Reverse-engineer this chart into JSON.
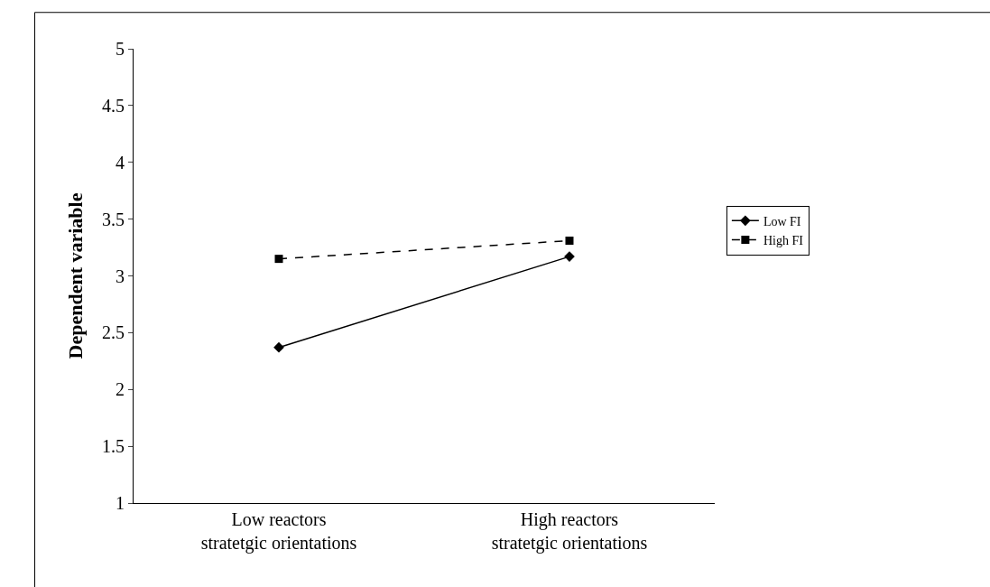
{
  "chart_data": {
    "type": "line",
    "ylabel": "Dependent variable",
    "categories": [
      "Low reactors stratetgic orientations",
      "High reactors stratetgic orientations"
    ],
    "series": [
      {
        "name": "Low FI",
        "color": "#000000",
        "values": [
          2.37,
          3.17
        ],
        "marker": "diamond",
        "line_style": "solid"
      },
      {
        "name": "High FI",
        "color": "#000000",
        "values": [
          3.15,
          3.31
        ],
        "marker": "square",
        "line_style": "dashed"
      }
    ],
    "ylim": [
      1,
      5
    ],
    "yticks": [
      1,
      1.5,
      2,
      2.5,
      3,
      3.5,
      4,
      4.5,
      5
    ],
    "grid": false,
    "legend": "right"
  }
}
